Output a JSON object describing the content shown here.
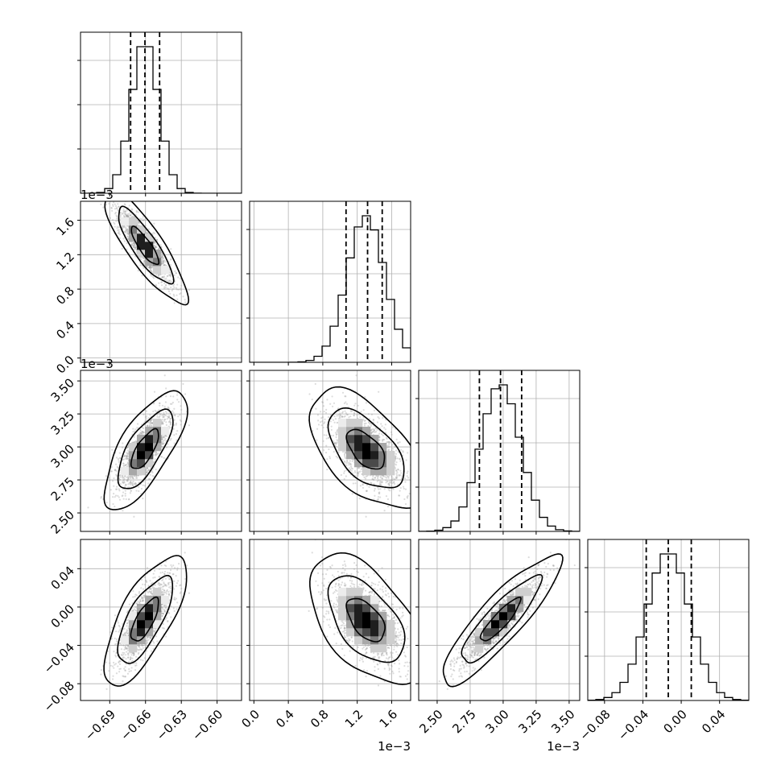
{
  "figure": {
    "type": "corner-plot",
    "background": "#ffffff",
    "line_color": "#000000",
    "grid_color": "#b0b0b0",
    "point_color": "#9a9a9a",
    "density_colors": [
      "#ffffff",
      "#ececec",
      "#cfcfcf",
      "#a8a8a8",
      "#7a7a7a",
      "#4a4a4a",
      "#1e1e1e",
      "#000000"
    ]
  },
  "chart_data": {
    "type": "corner",
    "grid": true,
    "parameters": [
      {
        "id": "p0",
        "range": [
          -0.7145,
          -0.5795
        ],
        "ticks": [
          -0.69,
          -0.66,
          -0.63,
          -0.6
        ],
        "tick_labels": [
          "−0.69",
          "−0.66",
          "−0.63",
          "−0.60"
        ],
        "offset_label": "",
        "mean": -0.6605,
        "sd": 0.0115,
        "quantiles": [
          -0.6725,
          -0.6605,
          -0.6482
        ]
      },
      {
        "id": "p1",
        "range": [
          -5e-05,
          0.00182
        ],
        "ticks": [
          0.0,
          0.0004,
          0.0008,
          0.0012,
          0.0016
        ],
        "tick_labels": [
          "0.0",
          "0.4",
          "0.8",
          "1.2",
          "1.6"
        ],
        "offset_label": "1e−3",
        "mean": 0.0013,
        "sd": 0.00022,
        "quantiles": [
          0.00107,
          0.00132,
          0.00149
        ]
      },
      {
        "id": "p2",
        "range": [
          0.00236,
          0.00358
        ],
        "ticks": [
          0.0025,
          0.00275,
          0.003,
          0.00325,
          0.0035
        ],
        "tick_labels": [
          "2.50",
          "2.75",
          "3.00",
          "3.25",
          "3.50"
        ],
        "offset_label": "1e−3",
        "mean": 0.00298,
        "sd": 0.00015,
        "quantiles": [
          0.00282,
          0.00298,
          0.00314
        ]
      },
      {
        "id": "p3",
        "range": [
          -0.0975,
          0.0705
        ],
        "ticks": [
          -0.08,
          -0.04,
          0.0,
          0.04
        ],
        "tick_labels": [
          "−0.08",
          "−0.04",
          "0.00",
          "0.04"
        ],
        "offset_label": "",
        "mean": -0.0135,
        "sd": 0.0225,
        "quantiles": [
          -0.0365,
          -0.0135,
          0.0105
        ]
      }
    ],
    "correlations": [
      [
        1.0,
        -0.85,
        0.72,
        0.72
      ],
      [
        -0.85,
        1.0,
        -0.56,
        -0.53
      ],
      [
        0.72,
        -0.56,
        1.0,
        0.88
      ],
      [
        0.72,
        -0.53,
        0.88,
        1.0
      ]
    ],
    "histogram": {
      "bins": 20,
      "style": "step"
    },
    "contour_levels": [
      0.393,
      0.865,
      0.989
    ],
    "samples_shown": 1500,
    "hist_y_ticks": 3
  }
}
